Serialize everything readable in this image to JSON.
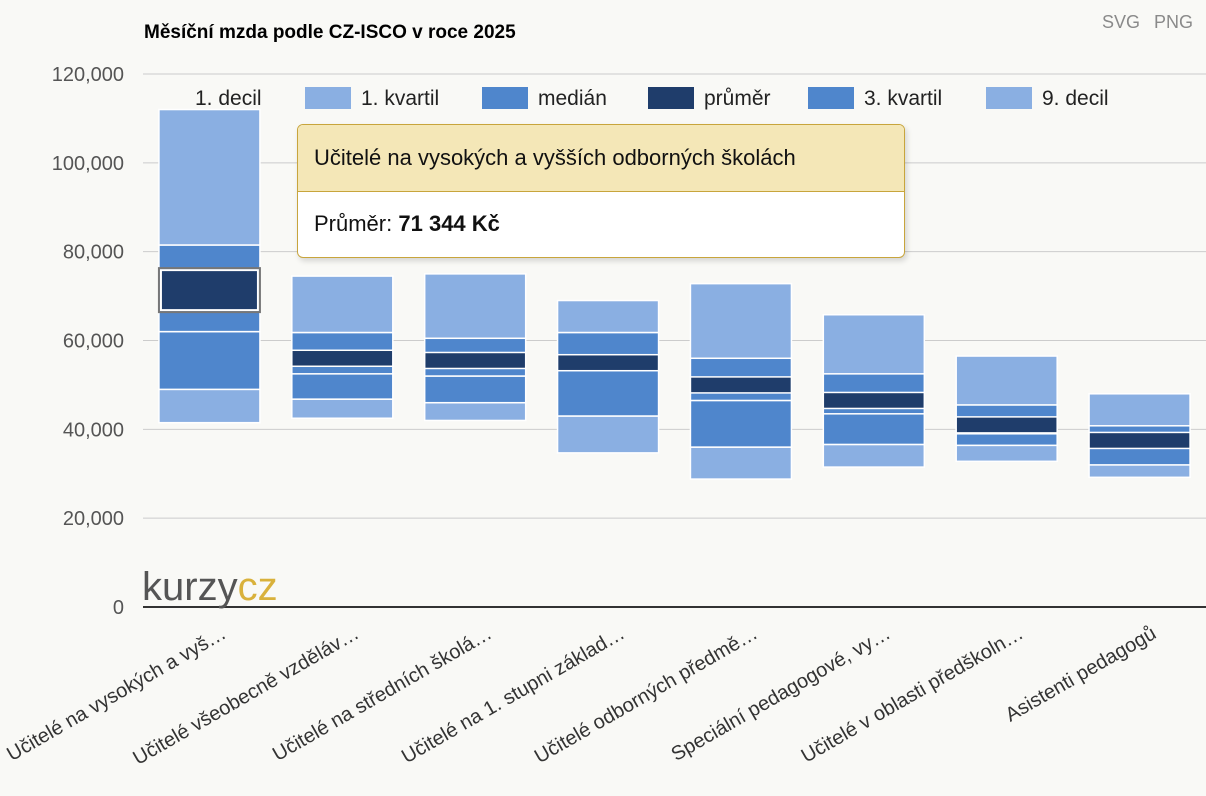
{
  "header": {
    "title": "Měsíční mzda podle CZ-ISCO v roce 2025",
    "export_svg": "SVG",
    "export_png": "PNG"
  },
  "watermark": {
    "text_a": "kurzy",
    "text_b": "cz"
  },
  "colors": {
    "decile": "#8aafe2",
    "quartile": "#4f86cc",
    "median": "#1f3d6b",
    "grid": "#cccccc",
    "baseline": "#333333"
  },
  "legend": [
    {
      "label": "1. decil",
      "swatch": "none"
    },
    {
      "label": "1. kvartil",
      "swatch": "#8aafe2"
    },
    {
      "label": "medián",
      "swatch": "#4f86cc"
    },
    {
      "label": "průměr",
      "swatch": "#1f3d6b"
    },
    {
      "label": "3. kvartil",
      "swatch": "#4f86cc"
    },
    {
      "label": "9. decil",
      "swatch": "#8aafe2"
    }
  ],
  "tooltip": {
    "title": "Učitelé na vysokých a vyšších odborných školách",
    "label": "Průměr:",
    "value": "71 344 Kč"
  },
  "chart_data": {
    "type": "bar",
    "subtype": "stacked-range",
    "title": "Měsíční mzda podle CZ-ISCO v roce 2025",
    "ylim": [
      0,
      120000
    ],
    "yticks": [
      0,
      20000,
      40000,
      60000,
      80000,
      100000,
      120000
    ],
    "ytick_labels": [
      "0",
      "20,000",
      "40,000",
      "60,000",
      "80,000",
      "100,000",
      "120,000"
    ],
    "grid": true,
    "legend_position": "top",
    "categories": [
      "Učitelé na vysokých a vyš…",
      "Učitelé všeobecně vzděláv…",
      "Učitelé na středních školá…",
      "Učitelé na 1. stupni základ…",
      "Učitelé odborných předmě…",
      "Speciální pedagogové, vy…",
      "Učitelé v oblasti předškoln…",
      "Asistenti pedagogů"
    ],
    "series": [
      {
        "name": "1. decil",
        "values": [
          41500,
          42500,
          42000,
          34700,
          28800,
          31500,
          32800,
          29200
        ]
      },
      {
        "name": "1. kvartil",
        "values": [
          49000,
          46800,
          46000,
          43000,
          36000,
          36600,
          36400,
          32000
        ]
      },
      {
        "name": "medián",
        "values": [
          62000,
          52500,
          52000,
          55000,
          46500,
          43500,
          39000,
          36500
        ]
      },
      {
        "name": "průměr",
        "values": [
          71344,
          56000,
          55500,
          55000,
          50000,
          46500,
          41000,
          37500
        ]
      },
      {
        "name": "3. kvartil",
        "values": [
          81500,
          61800,
          60500,
          61800,
          56000,
          52500,
          45500,
          40800
        ]
      },
      {
        "name": "9. decil",
        "values": [
          112000,
          74500,
          75000,
          69000,
          72800,
          65800,
          56500,
          48000
        ]
      }
    ]
  }
}
